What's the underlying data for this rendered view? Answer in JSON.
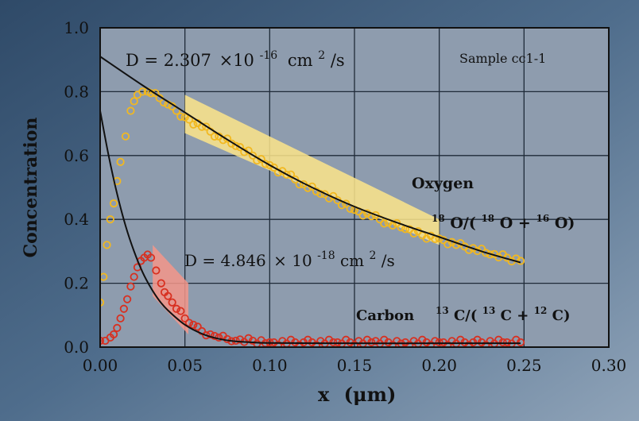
{
  "chart_data": {
    "type": "scatter",
    "xlabel": "x",
    "xlabel_unit": "(μm)",
    "ylabel": "Concentration",
    "xlim": [
      0.0,
      0.3
    ],
    "ylim": [
      0.0,
      1.0
    ],
    "x_ticks": [
      "0.00",
      "0.05",
      "0.10",
      "0.15",
      "0.20",
      "0.25",
      "0.30"
    ],
    "y_ticks": [
      "0.0",
      "0.2",
      "0.4",
      "0.6",
      "0.8",
      "1.0"
    ],
    "grid": true,
    "background_color": "#8e9cae",
    "series": [
      {
        "name": "Oxygen",
        "marker": "open-circle",
        "color": "#f2b81f",
        "x": [
          0.0,
          0.002,
          0.004,
          0.006,
          0.008,
          0.01,
          0.012,
          0.015,
          0.018,
          0.02,
          0.022,
          0.025,
          0.028,
          0.03,
          0.035,
          0.04,
          0.045,
          0.05,
          0.06,
          0.07,
          0.08,
          0.09,
          0.1,
          0.11,
          0.12,
          0.13,
          0.14,
          0.15,
          0.16,
          0.17,
          0.18,
          0.19,
          0.2,
          0.21,
          0.22,
          0.23,
          0.24,
          0.248
        ],
        "y": [
          0.14,
          0.22,
          0.32,
          0.4,
          0.45,
          0.52,
          0.58,
          0.66,
          0.74,
          0.77,
          0.79,
          0.8,
          0.8,
          0.795,
          0.78,
          0.76,
          0.74,
          0.72,
          0.69,
          0.66,
          0.63,
          0.6,
          0.57,
          0.54,
          0.51,
          0.48,
          0.46,
          0.43,
          0.41,
          0.39,
          0.37,
          0.35,
          0.34,
          0.32,
          0.31,
          0.29,
          0.28,
          0.27
        ]
      },
      {
        "name": "Carbon",
        "marker": "open-circle",
        "color": "#d83020",
        "x": [
          0.0,
          0.003,
          0.006,
          0.008,
          0.01,
          0.012,
          0.014,
          0.016,
          0.018,
          0.02,
          0.022,
          0.024,
          0.026,
          0.028,
          0.03,
          0.033,
          0.036,
          0.04,
          0.045,
          0.05,
          0.055,
          0.06,
          0.065,
          0.07,
          0.075,
          0.08,
          0.09,
          0.1,
          0.12,
          0.14,
          0.16,
          0.18,
          0.2,
          0.22,
          0.24,
          0.248
        ],
        "y": [
          0.02,
          0.02,
          0.03,
          0.04,
          0.06,
          0.09,
          0.12,
          0.15,
          0.19,
          0.22,
          0.25,
          0.27,
          0.28,
          0.29,
          0.28,
          0.24,
          0.2,
          0.16,
          0.12,
          0.09,
          0.07,
          0.05,
          0.04,
          0.03,
          0.025,
          0.02,
          0.02,
          0.015,
          0.015,
          0.015,
          0.015,
          0.015,
          0.015,
          0.015,
          0.015,
          0.015
        ]
      }
    ],
    "fit_lines": [
      {
        "name": "Oxygen fit",
        "color": "#111111",
        "x": [
          0.0,
          0.025,
          0.05,
          0.075,
          0.1,
          0.125,
          0.15,
          0.175,
          0.2,
          0.225,
          0.248
        ],
        "y": [
          0.91,
          0.82,
          0.735,
          0.65,
          0.57,
          0.5,
          0.44,
          0.39,
          0.345,
          0.3,
          0.265
        ]
      },
      {
        "name": "Carbon fit",
        "color": "#111111",
        "x": [
          0.0,
          0.005,
          0.01,
          0.015,
          0.02,
          0.025,
          0.03,
          0.035,
          0.04,
          0.05,
          0.06,
          0.07,
          0.08,
          0.09,
          0.1,
          0.15,
          0.2,
          0.248
        ],
        "y": [
          0.74,
          0.6,
          0.48,
          0.38,
          0.3,
          0.235,
          0.185,
          0.145,
          0.115,
          0.07,
          0.042,
          0.026,
          0.018,
          0.015,
          0.013,
          0.012,
          0.012,
          0.012
        ]
      }
    ],
    "fit_bands": [
      {
        "color": "#fde58a",
        "x_range": [
          0.05,
          0.2
        ],
        "upper_y_at_start": 0.79,
        "lower_y_at_start": 0.67,
        "upper_y_at_end": 0.4,
        "lower_y_at_end": 0.32
      },
      {
        "color": "#f5968a",
        "x_range": [
          0.031,
          0.052
        ],
        "upper_y_at_start": 0.32,
        "lower_y_at_start": 0.16,
        "upper_y_at_end": 0.2,
        "lower_y_at_end": 0.04
      }
    ],
    "annotations": {
      "oxygen_d_prefix": "D = 2.307",
      "oxygen_d_times": "×10",
      "oxygen_d_exp": "-16",
      "oxygen_d_unit": "cm",
      "oxygen_d_unit_exp": "2",
      "oxygen_d_unit_tail": "/s",
      "carbon_d_prefix": "D = 4.846",
      "carbon_d_times": "× 10",
      "carbon_d_exp": "-18",
      "carbon_d_unit": "cm",
      "carbon_d_unit_exp": "2",
      "carbon_d_unit_tail": "/s",
      "sample_label": "Sample cc1-1",
      "oxygen_label": "Oxygen",
      "oxygen_ratio_parts": [
        "18",
        "O/(",
        "18",
        "O +",
        "16",
        "O)"
      ],
      "carbon_label": "Carbon",
      "carbon_ratio_parts": [
        "13",
        "C/(",
        "13",
        "C +",
        "12",
        "C)"
      ]
    }
  }
}
